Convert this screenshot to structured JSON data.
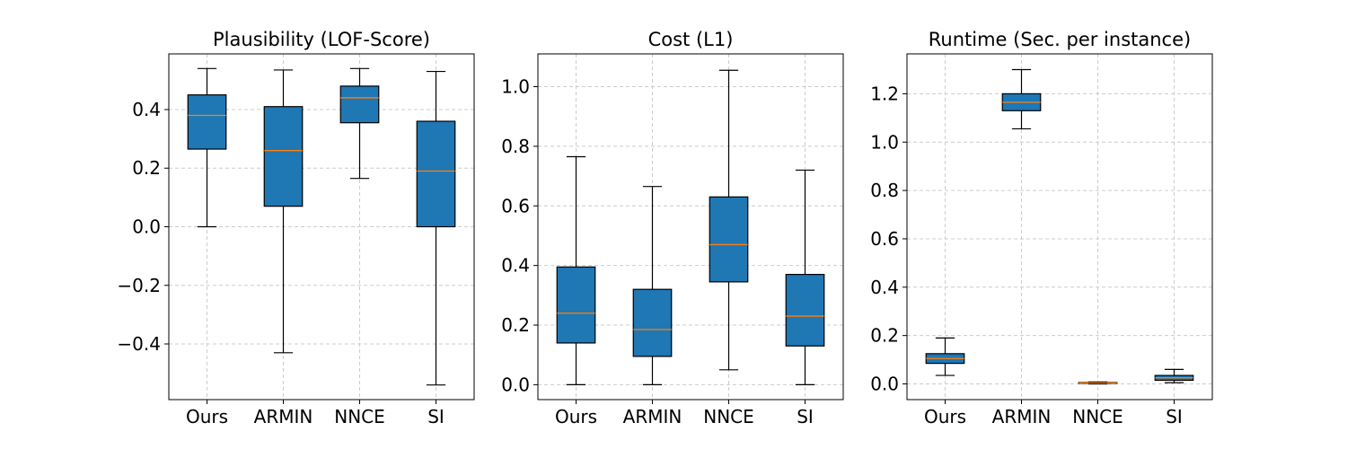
{
  "chart_data": [
    {
      "type": "box",
      "title": "Plausibility (LOF-Score)",
      "xlabel": "",
      "ylabel": "",
      "categories": [
        "Ours",
        "ARMIN",
        "NNCE",
        "SI"
      ],
      "ylim": [
        -0.59,
        0.59
      ],
      "yticks": [
        -0.4,
        -0.2,
        0.0,
        0.2,
        0.4
      ],
      "ytick_labels": [
        "−0.4",
        "−0.2",
        "0.0",
        "0.2",
        "0.4"
      ],
      "grid": true,
      "boxes": [
        {
          "category": "Ours",
          "min": 0.0,
          "q1": 0.265,
          "median": 0.38,
          "q3": 0.45,
          "max": 0.54
        },
        {
          "category": "ARMIN",
          "min": -0.43,
          "q1": 0.07,
          "median": 0.26,
          "q3": 0.41,
          "max": 0.535
        },
        {
          "category": "NNCE",
          "min": 0.165,
          "q1": 0.355,
          "median": 0.44,
          "q3": 0.48,
          "max": 0.54
        },
        {
          "category": "SI",
          "min": -0.54,
          "q1": 0.0,
          "median": 0.19,
          "q3": 0.36,
          "max": 0.53
        }
      ]
    },
    {
      "type": "box",
      "title": "Cost (L1)",
      "xlabel": "",
      "ylabel": "",
      "categories": [
        "Ours",
        "ARMIN",
        "NNCE",
        "SI"
      ],
      "ylim": [
        -0.05,
        1.11
      ],
      "yticks": [
        0.0,
        0.2,
        0.4,
        0.6,
        0.8,
        1.0
      ],
      "ytick_labels": [
        "0.0",
        "0.2",
        "0.4",
        "0.6",
        "0.8",
        "1.0"
      ],
      "grid": true,
      "boxes": [
        {
          "category": "Ours",
          "min": 0.0,
          "q1": 0.14,
          "median": 0.24,
          "q3": 0.395,
          "max": 0.765
        },
        {
          "category": "ARMIN",
          "min": 0.0,
          "q1": 0.095,
          "median": 0.185,
          "q3": 0.32,
          "max": 0.665
        },
        {
          "category": "NNCE",
          "min": 0.05,
          "q1": 0.345,
          "median": 0.47,
          "q3": 0.63,
          "max": 1.055
        },
        {
          "category": "SI",
          "min": 0.0,
          "q1": 0.13,
          "median": 0.23,
          "q3": 0.37,
          "max": 0.72
        }
      ]
    },
    {
      "type": "box",
      "title": "Runtime (Sec. per instance)",
      "xlabel": "",
      "ylabel": "",
      "categories": [
        "Ours",
        "ARMIN",
        "NNCE",
        "SI"
      ],
      "ylim": [
        -0.065,
        1.365
      ],
      "yticks": [
        0.0,
        0.2,
        0.4,
        0.6,
        0.8,
        1.0,
        1.2
      ],
      "ytick_labels": [
        "0.0",
        "0.2",
        "0.4",
        "0.6",
        "0.8",
        "1.0",
        "1.2"
      ],
      "grid": true,
      "boxes": [
        {
          "category": "Ours",
          "min": 0.035,
          "q1": 0.085,
          "median": 0.105,
          "q3": 0.125,
          "max": 0.19
        },
        {
          "category": "ARMIN",
          "min": 1.055,
          "q1": 1.13,
          "median": 1.165,
          "q3": 1.2,
          "max": 1.3
        },
        {
          "category": "NNCE",
          "min": 0.0,
          "q1": 0.002,
          "median": 0.004,
          "q3": 0.006,
          "max": 0.008
        },
        {
          "category": "SI",
          "min": 0.005,
          "q1": 0.015,
          "median": 0.025,
          "q3": 0.035,
          "max": 0.06
        }
      ]
    }
  ],
  "colors": {
    "box_fill": "#1f77b4",
    "median": "#ff7f0e",
    "edge": "#000000",
    "grid": "#cccccc",
    "background": "#ffffff"
  }
}
